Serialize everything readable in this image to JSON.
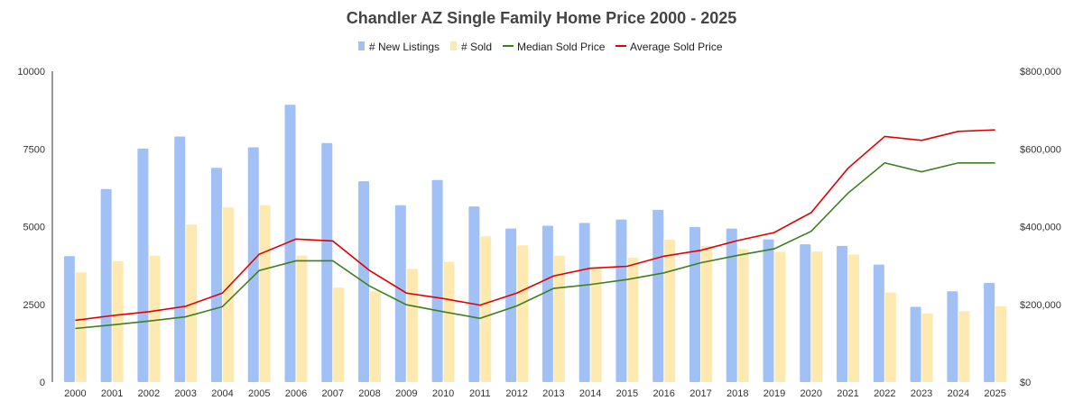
{
  "chart_data": {
    "type": "bar",
    "title": "Chandler AZ Single Family Home Price 2000 - 2025",
    "legend_position": "top",
    "grid": false,
    "categories": [
      "2000",
      "2001",
      "2002",
      "2003",
      "2004",
      "2005",
      "2006",
      "2007",
      "2008",
      "2009",
      "2010",
      "2011",
      "2012",
      "2013",
      "2014",
      "2015",
      "2016",
      "2017",
      "2018",
      "2019",
      "2020",
      "2021",
      "2022",
      "2023",
      "2024",
      "2025"
    ],
    "left_axis": {
      "range": [
        0,
        10000
      ],
      "ticks": [
        "0",
        "2500",
        "5000",
        "7500",
        "10000"
      ],
      "tick_values": [
        0,
        2500,
        5000,
        7500,
        10000
      ]
    },
    "right_axis": {
      "range": [
        0,
        800000
      ],
      "ticks": [
        "$0",
        "$200,000",
        "$400,000",
        "$600,000",
        "$800,000"
      ],
      "tick_values": [
        0,
        200000,
        400000,
        600000,
        800000
      ]
    },
    "series": [
      {
        "name": "# New Listings",
        "kind": "bar",
        "axis": "left",
        "color": "#a0c0f6",
        "values": [
          4050,
          6210,
          7510,
          7900,
          6890,
          7550,
          8920,
          7690,
          6460,
          5690,
          6500,
          5650,
          4940,
          5030,
          5120,
          5230,
          5540,
          4990,
          4940,
          4590,
          4430,
          4380,
          3780,
          2420,
          2920,
          3190
        ]
      },
      {
        "name": "# Sold",
        "kind": "bar",
        "axis": "left",
        "color": "#feeab0",
        "values": [
          3530,
          3890,
          4070,
          5070,
          5620,
          5690,
          4070,
          3040,
          2920,
          3640,
          3870,
          4690,
          4400,
          4070,
          3660,
          4000,
          4580,
          4380,
          4280,
          4190,
          4200,
          4110,
          2880,
          2210,
          2280,
          2440
        ]
      },
      {
        "name": "Median Sold Price",
        "kind": "line",
        "axis": "right",
        "color": "#3f7f1f",
        "values": [
          138000,
          147000,
          157000,
          168000,
          194000,
          287000,
          312000,
          312000,
          247000,
          199000,
          181000,
          164000,
          196000,
          241000,
          251000,
          264000,
          281000,
          307000,
          326000,
          343000,
          388000,
          486000,
          564000,
          541000,
          564000,
          564000
        ]
      },
      {
        "name": "Average Sold Price",
        "kind": "line",
        "axis": "right",
        "color": "#e00000",
        "values": [
          159000,
          171000,
          181000,
          195000,
          229000,
          329000,
          368000,
          363000,
          287000,
          229000,
          215000,
          198000,
          229000,
          273000,
          293000,
          298000,
          324000,
          339000,
          364000,
          385000,
          436000,
          550000,
          632000,
          622000,
          645000,
          649000
        ]
      }
    ]
  }
}
